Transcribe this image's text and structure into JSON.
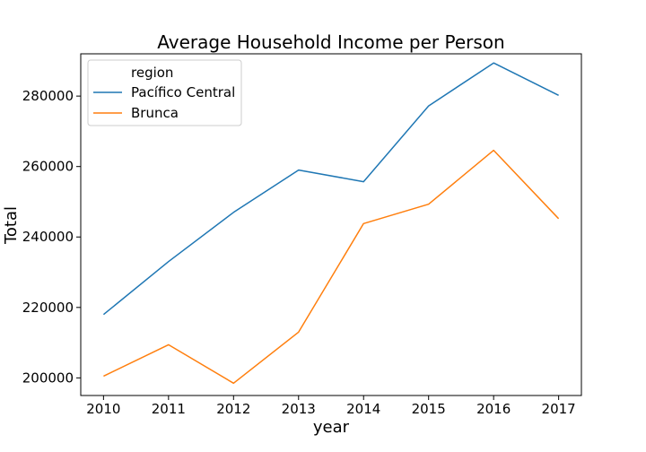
{
  "chart_data": {
    "type": "line",
    "title": "Average Household Income per Person",
    "xlabel": "year",
    "ylabel": "Total",
    "x": [
      2010,
      2011,
      2012,
      2013,
      2014,
      2015,
      2016,
      2017
    ],
    "ylim": [
      195000,
      292000
    ],
    "yticks": [
      200000,
      220000,
      240000,
      260000,
      280000
    ],
    "series": [
      {
        "name": "Pacífico Central",
        "color": "#1f77b4",
        "values": [
          218000,
          233000,
          247000,
          259000,
          255700,
          277200,
          289400,
          280200
        ]
      },
      {
        "name": "Brunca",
        "color": "#ff7f0e",
        "values": [
          200500,
          209400,
          198500,
          213000,
          243800,
          249300,
          264600,
          245200
        ]
      }
    ],
    "legend": {
      "title": "region",
      "placement": "top-left"
    },
    "grid": false
  }
}
